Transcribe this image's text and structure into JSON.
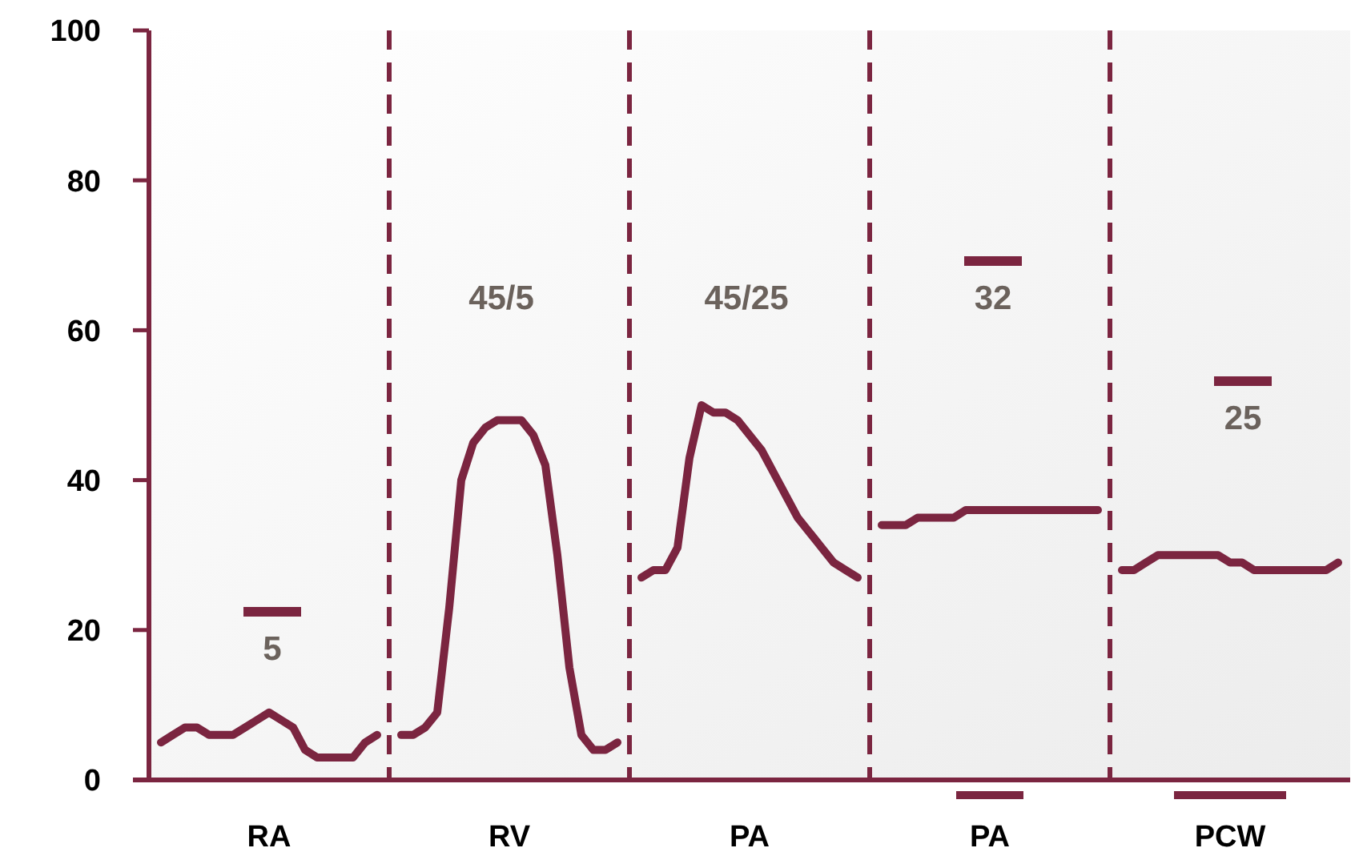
{
  "chart_data": {
    "type": "line",
    "ylim": [
      0,
      100
    ],
    "categories": [
      null,
      null,
      null,
      null,
      null,
      null,
      null,
      null,
      null,
      null,
      "RA",
      null,
      null,
      null,
      null,
      null,
      null,
      null,
      null,
      null,
      null,
      null,
      null,
      null,
      null,
      null,
      null,
      null,
      null,
      null,
      "RV",
      null,
      null,
      null,
      null,
      null,
      null,
      null,
      null,
      null,
      null,
      null,
      null,
      null,
      null,
      null,
      null,
      null,
      null,
      null,
      "PA",
      null,
      null,
      null,
      null,
      null,
      null,
      null,
      null,
      null,
      null,
      null,
      null,
      null,
      null,
      null,
      null,
      null,
      null,
      null,
      "PA",
      null,
      null,
      null,
      null,
      null,
      null,
      null,
      null,
      null,
      null,
      null,
      null,
      null,
      null,
      null,
      null,
      null,
      null,
      null,
      "PCW",
      null,
      null,
      null,
      null,
      null,
      null,
      null,
      null,
      null,
      null
    ],
    "yticks": [
      0,
      20,
      40,
      60,
      80,
      100
    ],
    "line_style": "solid",
    "series": [
      {
        "color": "#7b2540",
        "values": [
          null,
          5,
          6,
          7,
          7,
          6,
          6,
          6,
          7,
          8,
          9,
          8,
          7,
          4,
          3,
          3,
          3,
          3,
          5,
          6,
          null,
          6,
          6,
          7,
          9,
          23,
          40,
          45,
          47,
          48,
          48,
          48,
          46,
          42,
          30,
          15,
          6,
          4,
          4,
          5,
          null,
          27,
          28,
          28,
          31,
          43,
          50,
          49,
          49,
          48,
          46,
          44,
          41,
          38,
          35,
          33,
          31,
          29,
          28,
          27,
          null,
          34,
          34,
          34,
          35,
          35,
          35,
          35,
          36,
          36,
          36,
          36,
          36,
          36,
          36,
          36,
          36,
          36,
          36,
          36,
          null,
          28,
          28,
          29,
          30,
          30,
          30,
          30,
          30,
          30,
          29,
          29,
          28,
          28,
          28,
          28,
          28,
          28,
          28,
          29,
          null
        ]
      }
    ],
    "annotations": [
      "5",
      "45/5",
      "45/25",
      "32",
      "25"
    ]
  }
}
